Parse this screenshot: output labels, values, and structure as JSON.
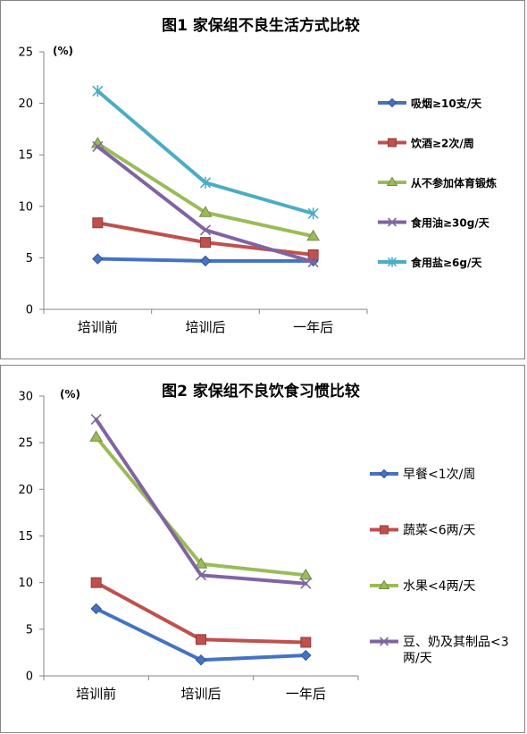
{
  "chart_data": [
    {
      "type": "line",
      "title": "图1 家保组不良生活方式比较",
      "ylabel": "(%)",
      "xlabel": "",
      "categories": [
        "培训前",
        "培训后",
        "一年后"
      ],
      "ylim": [
        0,
        25
      ],
      "yticks": [
        0,
        5,
        10,
        15,
        20,
        25
      ],
      "grid": false,
      "legend_position": "right",
      "series": [
        {
          "name": "吸烟≥10支/天",
          "values": [
            4.9,
            4.7,
            4.7
          ],
          "color": "#4472c4",
          "marker": "diamond"
        },
        {
          "name": "饮酒≥2次/周",
          "values": [
            8.4,
            6.5,
            5.3
          ],
          "color": "#c0504d",
          "marker": "square"
        },
        {
          "name": "从不参加体育锻炼",
          "values": [
            16.1,
            9.4,
            7.1
          ],
          "color": "#9bbb59",
          "marker": "triangle"
        },
        {
          "name": "食用油≥30g/天",
          "values": [
            15.8,
            7.7,
            4.6
          ],
          "color": "#8064a2",
          "marker": "x"
        },
        {
          "name": "食用盐≥6g/天",
          "values": [
            21.2,
            12.3,
            9.3
          ],
          "color": "#4bacc6",
          "marker": "star"
        }
      ]
    },
    {
      "type": "line",
      "title": "图2 家保组不良饮食习惯比较",
      "ylabel": "(%)",
      "xlabel": "",
      "categories": [
        "培训前",
        "培训后",
        "一年后"
      ],
      "ylim": [
        0,
        30
      ],
      "yticks": [
        0,
        5,
        10,
        15,
        20,
        25,
        30
      ],
      "grid": false,
      "legend_position": "right",
      "series": [
        {
          "name": "早餐<1次/周",
          "values": [
            7.2,
            1.7,
            2.2
          ],
          "color": "#4472c4",
          "marker": "diamond"
        },
        {
          "name": "蔬菜<6两/天",
          "values": [
            10.0,
            3.9,
            3.6
          ],
          "color": "#c0504d",
          "marker": "square"
        },
        {
          "name": "水果<4两/天",
          "values": [
            25.6,
            12.0,
            10.8
          ],
          "color": "#9bbb59",
          "marker": "triangle"
        },
        {
          "name": "豆、奶及其制品<3两/天",
          "name_lines": [
            "豆、奶及其制品<3",
            "两/天"
          ],
          "values": [
            27.5,
            10.8,
            9.9
          ],
          "color": "#8064a2",
          "marker": "x"
        }
      ]
    }
  ]
}
